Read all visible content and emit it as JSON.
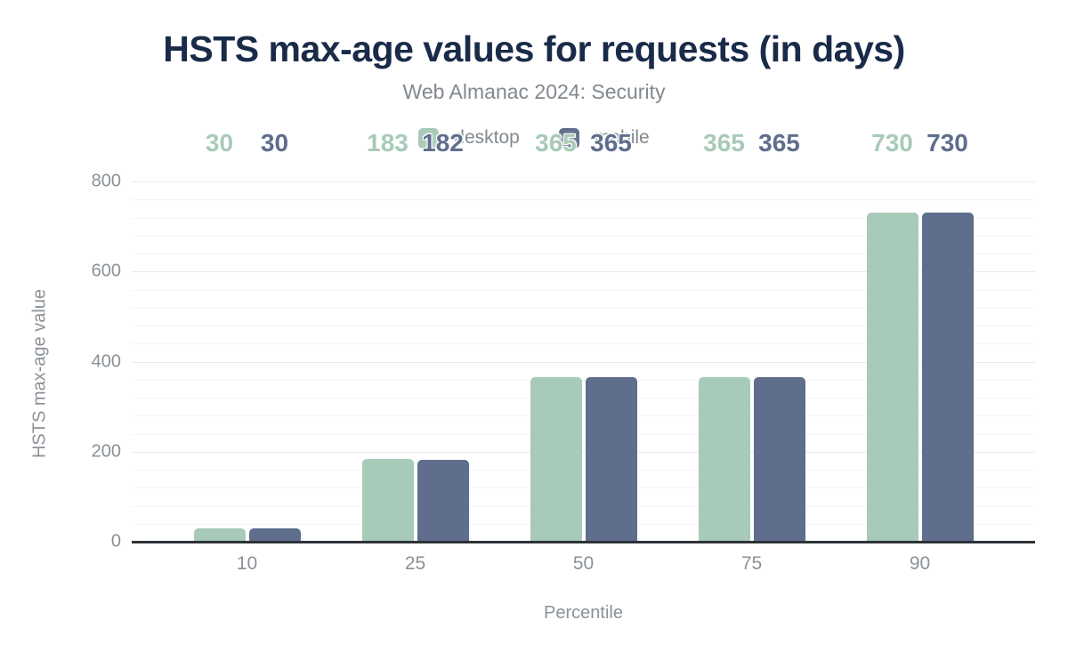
{
  "chart_data": {
    "type": "bar",
    "title": "HSTS max-age values for requests (in days)",
    "subtitle": "Web Almanac 2024: Security",
    "xlabel": "Percentile",
    "ylabel": "HSTS max-age value",
    "categories": [
      "10",
      "25",
      "50",
      "75",
      "90"
    ],
    "series": [
      {
        "name": "desktop",
        "color": "#a8cab8",
        "values": [
          30,
          183,
          365,
          365,
          730
        ]
      },
      {
        "name": "mobile",
        "color": "#5e6e8c",
        "values": [
          30,
          182,
          365,
          365,
          730
        ]
      }
    ],
    "ylim": [
      0,
      800
    ],
    "yticks": [
      0,
      200,
      400,
      600,
      800
    ],
    "minor_grid_interval": 40,
    "grid": true,
    "legend_position": "top",
    "data_labels": true
  },
  "colors": {
    "title": "#1a2b49",
    "subtitle_text": "#82888e",
    "axis_text": "#8b9197",
    "gridline_minor": "#f5f5f5",
    "gridline_major": "#ebebeb",
    "axis_baseline": "#2e3338",
    "background": "#ffffff"
  }
}
